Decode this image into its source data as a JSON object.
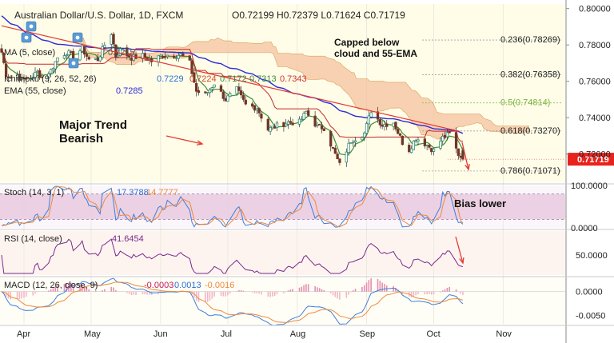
{
  "header": {
    "title": "Australian Dollar/U.S. Dollar, 1D, FXCM",
    "ohlc": "O0.72199 H0.72379 L0.71624 C0.71719"
  },
  "indicator_labels": {
    "ma": "MA (5, close)",
    "ma_value": "0.7215",
    "ichimoku": "Ichimoku (9, 26, 52, 26)",
    "ichimoku_values": [
      "0.7229",
      "0.7224",
      "0.7172",
      "0.7313",
      "0.7343"
    ],
    "ema": "EMA (55, close)",
    "ema_value": "0.7285",
    "stoch": "Stoch (14, 3, 1)",
    "stoch_values": [
      "17.3788",
      "14.7777"
    ],
    "rsi": "RSI (14, close)",
    "rsi_value": "41.6454",
    "macd": "MACD (12, 26, close, 9)",
    "macd_values": [
      "-0.0003",
      "0.0013",
      "-0.0016"
    ]
  },
  "annotations": {
    "trend": "Major Trend\nBearish",
    "capped": "Capped below\ncloud and 55-EMA",
    "bias": "Bias lower"
  },
  "colors": {
    "up": "#26a69a",
    "down": "#ef5350",
    "ema": "#2b2bd8",
    "trendline": "#e53935",
    "cloud": "#f4c2a0",
    "stoch_fill": "#e7c8dd",
    "rsi_fill": "#f7ddd2",
    "current_price": "#e8221c"
  },
  "chart_data": [
    {
      "type": "candlestick",
      "pane": "price",
      "x_tick_labels": [
        "Apr",
        "May",
        "Jun",
        "Jul",
        "Aug",
        "Sep",
        "Oct",
        "Nov"
      ],
      "y_tick_labels": [
        "0.80000",
        "0.78000",
        "0.76000",
        "0.74000",
        "0.72000"
      ],
      "ylim": [
        0.7045,
        0.8025
      ],
      "current_price": "0.71719",
      "fibonacci": [
        {
          "label": "0.236(0.78269)",
          "value": 0.78269
        },
        {
          "label": "0.382(0.76358)",
          "value": 0.76358
        },
        {
          "label": "0.5(0.74814)",
          "value": 0.74814
        },
        {
          "label": "0.618(0.73270)",
          "value": 0.7327
        },
        {
          "label": "0.786(0.71071)",
          "value": 0.71071
        }
      ],
      "close_series": [
        [
          "2021-03-22",
          0.776
        ],
        [
          "2021-03-24",
          0.764
        ],
        [
          "2021-03-26",
          0.762
        ],
        [
          "2021-03-29",
          0.7635
        ],
        [
          "2021-03-31",
          0.7605
        ],
        [
          "2021-04-05",
          0.763
        ],
        [
          "2021-04-07",
          0.765
        ],
        [
          "2021-04-09",
          0.762
        ],
        [
          "2021-04-13",
          0.766
        ],
        [
          "2021-04-16",
          0.773
        ],
        [
          "2021-04-20",
          0.776
        ],
        [
          "2021-04-23",
          0.7735
        ],
        [
          "2021-04-27",
          0.778
        ],
        [
          "2021-04-30",
          0.772
        ],
        [
          "2021-05-04",
          0.772
        ],
        [
          "2021-05-07",
          0.78
        ],
        [
          "2021-05-10",
          0.7865
        ],
        [
          "2021-05-12",
          0.774
        ],
        [
          "2021-05-14",
          0.777
        ],
        [
          "2021-05-19",
          0.773
        ],
        [
          "2021-05-24",
          0.774
        ],
        [
          "2021-05-28",
          0.771
        ],
        [
          "2021-06-02",
          0.7745
        ],
        [
          "2021-06-07",
          0.7745
        ],
        [
          "2021-06-10",
          0.7745
        ],
        [
          "2021-06-14",
          0.77
        ],
        [
          "2021-06-17",
          0.7545
        ],
        [
          "2021-06-21",
          0.7525
        ],
        [
          "2021-06-25",
          0.759
        ],
        [
          "2021-06-30",
          0.75
        ],
        [
          "2021-07-05",
          0.7555
        ],
        [
          "2021-07-09",
          0.747
        ],
        [
          "2021-07-14",
          0.7455
        ],
        [
          "2021-07-19",
          0.7335
        ],
        [
          "2021-07-23",
          0.7355
        ],
        [
          "2021-07-28",
          0.7375
        ],
        [
          "2021-08-02",
          0.7375
        ],
        [
          "2021-08-05",
          0.743
        ],
        [
          "2021-08-10",
          0.735
        ],
        [
          "2021-08-13",
          0.7345
        ],
        [
          "2021-08-17",
          0.7225
        ],
        [
          "2021-08-20",
          0.714
        ],
        [
          "2021-08-25",
          0.7275
        ],
        [
          "2021-08-31",
          0.7315
        ],
        [
          "2021-09-03",
          0.744
        ],
        [
          "2021-09-08",
          0.736
        ],
        [
          "2021-09-13",
          0.7375
        ],
        [
          "2021-09-17",
          0.7265
        ],
        [
          "2021-09-20",
          0.7225
        ],
        [
          "2021-09-23",
          0.729
        ],
        [
          "2021-09-28",
          0.725
        ],
        [
          "2021-10-01",
          0.722
        ],
        [
          "2021-10-05",
          0.729
        ],
        [
          "2021-10-08",
          0.731
        ],
        [
          "2021-10-12",
          0.72
        ],
        [
          "2021-10-14",
          0.7172
        ]
      ]
    },
    {
      "type": "line",
      "pane": "stoch",
      "y_tick_labels": [
        "100.0000",
        "0.0000"
      ],
      "ylim": [
        0,
        100
      ],
      "band": [
        20,
        80
      ]
    },
    {
      "type": "line",
      "pane": "rsi",
      "y_tick_labels": [
        "50.0000"
      ],
      "ylim": [
        25,
        80
      ]
    },
    {
      "type": "bar",
      "pane": "macd",
      "y_tick_labels": [
        "0.0000",
        "-0.0050"
      ],
      "ylim": [
        -0.0068,
        0.0028
      ]
    }
  ]
}
